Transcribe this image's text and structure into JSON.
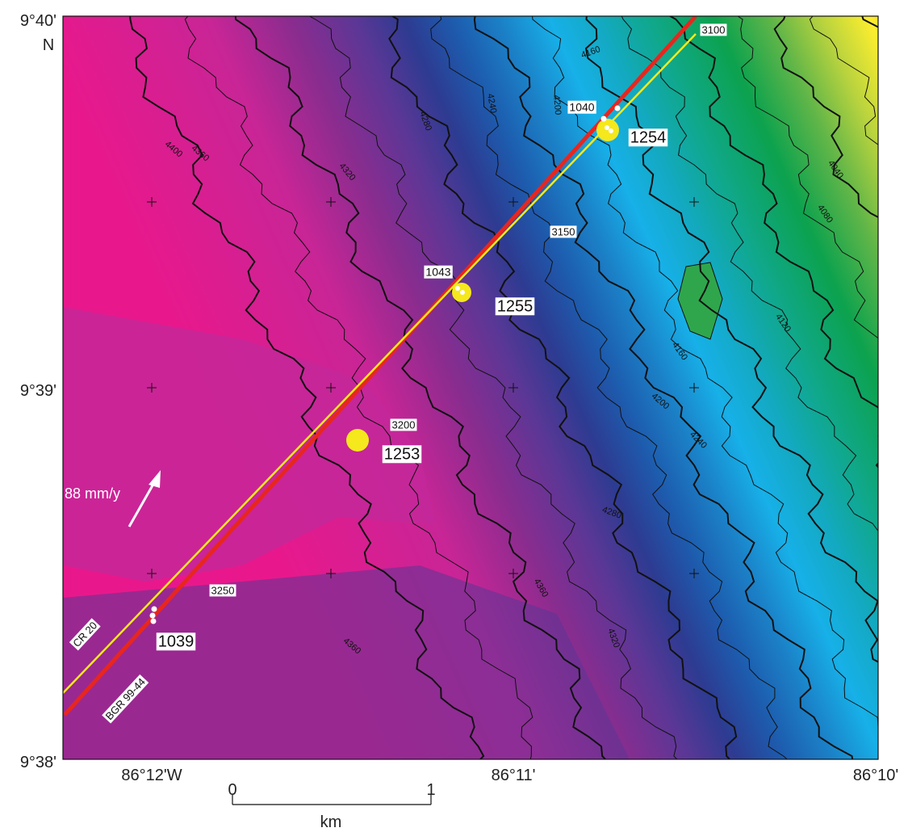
{
  "axes": {
    "latitude": [
      "9°40'",
      "N",
      "9°39'",
      "9°38'"
    ],
    "longitude": [
      "86°12'W",
      "86°11'",
      "86°10'"
    ]
  },
  "scale_bar": {
    "start": "0",
    "end": "1",
    "unit": "km"
  },
  "contour_labels": [
    4400,
    4360,
    4320,
    4280,
    4240,
    4200,
    4160,
    4040,
    4080,
    4120,
    4160,
    4200,
    4240,
    4280,
    4360,
    4320,
    4360
  ],
  "track_ticks": [
    3100,
    3150,
    3200,
    3250
  ],
  "sites": [
    "1040",
    "1254",
    "1043",
    "1255",
    "1253",
    "1039"
  ],
  "tracks": [
    "CR 20",
    "BGR 99-44"
  ],
  "plate_motion": "88 mm/y"
}
